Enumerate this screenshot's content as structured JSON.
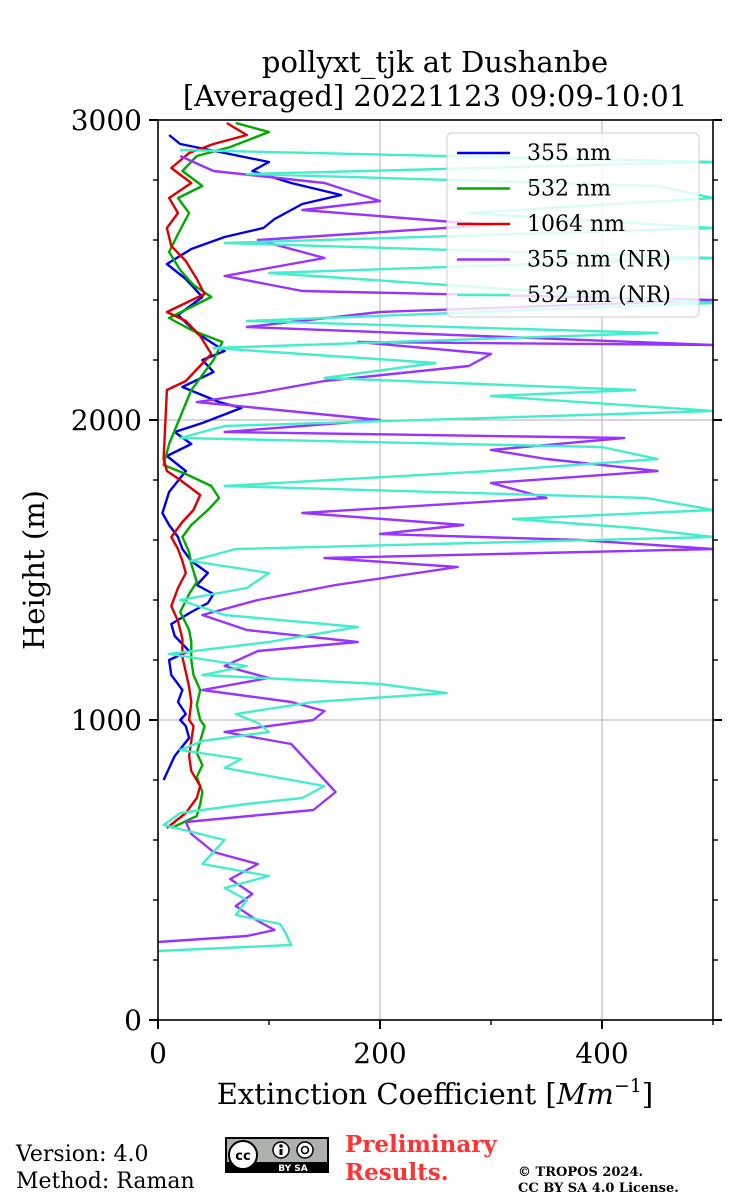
{
  "chart_data": {
    "type": "line",
    "title": "pollyxt_tjk at Dushanbe",
    "subtitle": "[Averaged] 20221123 09:09-10:01",
    "xlabel": "Extinction Coefficient",
    "xlabel_unit_base": "Mm",
    "xlabel_unit_exp": "−1",
    "ylabel": "Height (m)",
    "xlim": [
      0,
      500
    ],
    "ylim": [
      0,
      3000
    ],
    "x_ticks": [
      0,
      200,
      400
    ],
    "y_ticks": [
      0,
      1000,
      2000,
      3000
    ],
    "grid": true,
    "legend_position": "top-right",
    "series": [
      {
        "name": "355 nm",
        "color": "#0000ee",
        "points": [
          [
            5,
            800
          ],
          [
            15,
            880
          ],
          [
            28,
            940
          ],
          [
            25,
            980
          ],
          [
            20,
            1000
          ],
          [
            25,
            1020
          ],
          [
            18,
            1060
          ],
          [
            22,
            1100
          ],
          [
            12,
            1150
          ],
          [
            10,
            1200
          ],
          [
            28,
            1230
          ],
          [
            15,
            1280
          ],
          [
            12,
            1320
          ],
          [
            30,
            1360
          ],
          [
            45,
            1390
          ],
          [
            50,
            1420
          ],
          [
            35,
            1450
          ],
          [
            45,
            1490
          ],
          [
            30,
            1530
          ],
          [
            22,
            1570
          ],
          [
            18,
            1610
          ],
          [
            10,
            1650
          ],
          [
            4,
            1690
          ],
          [
            10,
            1760
          ],
          [
            25,
            1830
          ],
          [
            8,
            1880
          ],
          [
            30,
            1920
          ],
          [
            15,
            1960
          ],
          [
            40,
            1990
          ],
          [
            75,
            2040
          ],
          [
            55,
            2060
          ],
          [
            22,
            2110
          ],
          [
            50,
            2160
          ],
          [
            40,
            2200
          ],
          [
            60,
            2230
          ],
          [
            35,
            2290
          ],
          [
            18,
            2350
          ],
          [
            40,
            2410
          ],
          [
            25,
            2470
          ],
          [
            8,
            2520
          ],
          [
            30,
            2570
          ],
          [
            60,
            2610
          ],
          [
            95,
            2640
          ],
          [
            105,
            2670
          ],
          [
            130,
            2720
          ],
          [
            165,
            2750
          ],
          [
            120,
            2790
          ],
          [
            85,
            2830
          ],
          [
            100,
            2860
          ],
          [
            60,
            2890
          ],
          [
            20,
            2920
          ],
          [
            10,
            2950
          ]
        ]
      },
      {
        "name": "532 nm",
        "color": "#00aa00",
        "points": [
          [
            12,
            640
          ],
          [
            35,
            680
          ],
          [
            38,
            720
          ],
          [
            40,
            760
          ],
          [
            35,
            810
          ],
          [
            40,
            850
          ],
          [
            35,
            890
          ],
          [
            38,
            930
          ],
          [
            42,
            980
          ],
          [
            38,
            1000
          ],
          [
            35,
            1050
          ],
          [
            38,
            1100
          ],
          [
            32,
            1150
          ],
          [
            30,
            1200
          ],
          [
            30,
            1260
          ],
          [
            28,
            1300
          ],
          [
            20,
            1360
          ],
          [
            28,
            1420
          ],
          [
            35,
            1460
          ],
          [
            30,
            1520
          ],
          [
            28,
            1560
          ],
          [
            22,
            1610
          ],
          [
            30,
            1650
          ],
          [
            45,
            1700
          ],
          [
            55,
            1740
          ],
          [
            48,
            1780
          ],
          [
            25,
            1820
          ],
          [
            5,
            1850
          ],
          [
            10,
            1920
          ],
          [
            30,
            2100
          ],
          [
            50,
            2200
          ],
          [
            58,
            2260
          ],
          [
            30,
            2300
          ],
          [
            10,
            2340
          ],
          [
            48,
            2410
          ],
          [
            32,
            2450
          ],
          [
            20,
            2500
          ],
          [
            10,
            2560
          ],
          [
            18,
            2620
          ],
          [
            28,
            2690
          ],
          [
            18,
            2740
          ],
          [
            40,
            2780
          ],
          [
            22,
            2830
          ],
          [
            35,
            2880
          ],
          [
            65,
            2910
          ],
          [
            100,
            2960
          ],
          [
            70,
            2990
          ]
        ]
      },
      {
        "name": "1064 nm",
        "color": "#dd0000",
        "points": [
          [
            8,
            640
          ],
          [
            25,
            690
          ],
          [
            35,
            740
          ],
          [
            38,
            780
          ],
          [
            30,
            830
          ],
          [
            28,
            880
          ],
          [
            30,
            930
          ],
          [
            32,
            980
          ],
          [
            28,
            1000
          ],
          [
            30,
            1060
          ],
          [
            28,
            1110
          ],
          [
            25,
            1160
          ],
          [
            22,
            1210
          ],
          [
            22,
            1270
          ],
          [
            18,
            1330
          ],
          [
            12,
            1380
          ],
          [
            18,
            1440
          ],
          [
            25,
            1490
          ],
          [
            22,
            1530
          ],
          [
            18,
            1570
          ],
          [
            12,
            1610
          ],
          [
            22,
            1660
          ],
          [
            32,
            1700
          ],
          [
            38,
            1750
          ],
          [
            20,
            1800
          ],
          [
            8,
            1830
          ],
          [
            5,
            1870
          ],
          [
            8,
            2100
          ],
          [
            25,
            2130
          ],
          [
            48,
            2220
          ],
          [
            38,
            2280
          ],
          [
            25,
            2330
          ],
          [
            8,
            2360
          ],
          [
            42,
            2420
          ],
          [
            35,
            2470
          ],
          [
            25,
            2530
          ],
          [
            12,
            2580
          ],
          [
            8,
            2640
          ],
          [
            18,
            2690
          ],
          [
            10,
            2740
          ],
          [
            30,
            2790
          ],
          [
            12,
            2840
          ],
          [
            28,
            2890
          ],
          [
            50,
            2920
          ],
          [
            80,
            2950
          ],
          [
            62,
            2990
          ]
        ]
      },
      {
        "name": "355 nm (NR)",
        "color": "#9933ff",
        "points": [
          [
            0,
            260
          ],
          [
            80,
            280
          ],
          [
            105,
            300
          ],
          [
            90,
            330
          ],
          [
            70,
            380
          ],
          [
            85,
            420
          ],
          [
            65,
            470
          ],
          [
            90,
            520
          ],
          [
            50,
            560
          ],
          [
            30,
            620
          ],
          [
            25,
            660
          ],
          [
            140,
            700
          ],
          [
            160,
            760
          ],
          [
            130,
            880
          ],
          [
            120,
            920
          ],
          [
            60,
            960
          ],
          [
            140,
            1000
          ],
          [
            150,
            1030
          ],
          [
            120,
            1060
          ],
          [
            40,
            1100
          ],
          [
            100,
            1140
          ],
          [
            60,
            1180
          ],
          [
            90,
            1230
          ],
          [
            180,
            1260
          ],
          [
            80,
            1300
          ],
          [
            40,
            1350
          ],
          [
            90,
            1400
          ],
          [
            160,
            1450
          ],
          [
            270,
            1510
          ],
          [
            150,
            1540
          ],
          [
            500,
            1570
          ],
          [
            380,
            1600
          ],
          [
            200,
            1620
          ],
          [
            275,
            1650
          ],
          [
            130,
            1690
          ],
          [
            350,
            1740
          ],
          [
            300,
            1790
          ],
          [
            450,
            1830
          ],
          [
            350,
            1870
          ],
          [
            300,
            1900
          ],
          [
            420,
            1940
          ],
          [
            60,
            1960
          ],
          [
            200,
            2000
          ],
          [
            35,
            2060
          ],
          [
            90,
            2090
          ],
          [
            150,
            2130
          ],
          [
            280,
            2180
          ],
          [
            300,
            2220
          ],
          [
            180,
            2260
          ],
          [
            500,
            2250
          ],
          [
            80,
            2310
          ],
          [
            200,
            2360
          ],
          [
            500,
            2400
          ],
          [
            130,
            2430
          ],
          [
            60,
            2480
          ],
          [
            150,
            2540
          ],
          [
            90,
            2600
          ],
          [
            300,
            2650
          ],
          [
            130,
            2700
          ],
          [
            200,
            2730
          ],
          [
            150,
            2790
          ],
          [
            50,
            2830
          ],
          [
            20,
            2880
          ]
        ]
      },
      {
        "name": "532 nm (NR)",
        "color": "#44eecc",
        "points": [
          [
            0,
            230
          ],
          [
            120,
            250
          ],
          [
            115,
            290
          ],
          [
            110,
            320
          ],
          [
            70,
            350
          ],
          [
            80,
            400
          ],
          [
            60,
            440
          ],
          [
            100,
            480
          ],
          [
            40,
            520
          ],
          [
            50,
            560
          ],
          [
            60,
            600
          ],
          [
            5,
            650
          ],
          [
            20,
            690
          ],
          [
            80,
            720
          ],
          [
            130,
            740
          ],
          [
            150,
            780
          ],
          [
            120,
            800
          ],
          [
            60,
            840
          ],
          [
            75,
            870
          ],
          [
            20,
            900
          ],
          [
            40,
            930
          ],
          [
            100,
            960
          ],
          [
            90,
            990
          ],
          [
            70,
            1020
          ],
          [
            140,
            1060
          ],
          [
            260,
            1090
          ],
          [
            200,
            1120
          ],
          [
            40,
            1150
          ],
          [
            80,
            1180
          ],
          [
            10,
            1220
          ],
          [
            100,
            1260
          ],
          [
            180,
            1310
          ],
          [
            60,
            1350
          ],
          [
            20,
            1400
          ],
          [
            80,
            1440
          ],
          [
            100,
            1490
          ],
          [
            30,
            1530
          ],
          [
            70,
            1570
          ],
          [
            500,
            1610
          ],
          [
            430,
            1640
          ],
          [
            320,
            1670
          ],
          [
            500,
            1700
          ],
          [
            440,
            1740
          ],
          [
            60,
            1780
          ],
          [
            300,
            1830
          ],
          [
            450,
            1870
          ],
          [
            400,
            1910
          ],
          [
            20,
            1940
          ],
          [
            60,
            1980
          ],
          [
            500,
            2030
          ],
          [
            300,
            2080
          ],
          [
            430,
            2100
          ],
          [
            150,
            2140
          ],
          [
            250,
            2190
          ],
          [
            50,
            2240
          ],
          [
            450,
            2290
          ],
          [
            80,
            2330
          ],
          [
            500,
            2390
          ],
          [
            300,
            2440
          ],
          [
            100,
            2490
          ],
          [
            500,
            2540
          ],
          [
            60,
            2590
          ],
          [
            500,
            2640
          ],
          [
            280,
            2690
          ],
          [
            500,
            2740
          ],
          [
            450,
            2780
          ],
          [
            80,
            2820
          ],
          [
            500,
            2860
          ],
          [
            20,
            2900
          ]
        ]
      }
    ]
  },
  "footer": {
    "version": "Version: 4.0",
    "method": "Method: Raman",
    "preliminary_line1": "Preliminary",
    "preliminary_line2": "Results.",
    "copyright_line1": "© TROPOS 2024.",
    "copyright_line2": "CC BY SA 4.0 License.",
    "license_badge_text": "BY SA",
    "license_badge_cc": "cc"
  }
}
